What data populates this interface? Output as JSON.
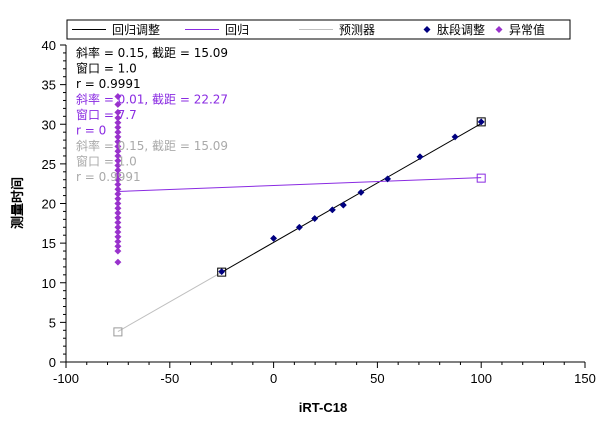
{
  "chart_data": {
    "type": "scatter",
    "xlabel": "iRT-C18",
    "ylabel": "测量时间",
    "xlim": [
      -100,
      150
    ],
    "ylim": [
      0,
      40
    ],
    "x_ticks": [
      -100,
      -50,
      0,
      50,
      100,
      150
    ],
    "y_ticks": [
      0,
      5,
      10,
      15,
      20,
      25,
      30,
      35,
      40
    ],
    "grid": false,
    "legend_placement": "top",
    "legend": [
      {
        "label": "回归调整",
        "kind": "line",
        "color": "#000000"
      },
      {
        "label": "回归",
        "kind": "line",
        "color": "#8a2be2"
      },
      {
        "label": "预测器",
        "kind": "line",
        "color": "#bfbfbf"
      },
      {
        "label": "肽段调整",
        "kind": "marker",
        "color": "#000080"
      },
      {
        "label": "异常值",
        "kind": "marker",
        "color": "#9932cc"
      }
    ],
    "lines": [
      {
        "name": "回归调整",
        "color": "#000000",
        "x": [
          -25,
          100
        ],
        "y": [
          11.34,
          30.09
        ]
      },
      {
        "name": "回归",
        "color": "#8a2be2",
        "x": [
          -75,
          100
        ],
        "y": [
          21.52,
          23.27
        ]
      },
      {
        "name": "预测器",
        "color": "#bfbfbf",
        "x": [
          -75,
          -25
        ],
        "y": [
          3.84,
          11.34
        ]
      }
    ],
    "endpoint_markers": [
      {
        "color": "#000000",
        "x": -25,
        "y": 11.34
      },
      {
        "color": "#000000",
        "x": 100,
        "y": 30.3
      },
      {
        "color": "#8a2be2",
        "x": 100,
        "y": 23.2
      },
      {
        "color": "#9a9a9a",
        "x": -75,
        "y": 3.8
      }
    ],
    "series": [
      {
        "name": "肽段调整",
        "color": "#000080",
        "points": [
          [
            -25,
            11.4
          ],
          [
            0,
            15.6
          ],
          [
            12.4,
            17.0
          ],
          [
            19.8,
            18.1
          ],
          [
            28.3,
            19.2
          ],
          [
            33.6,
            19.8
          ],
          [
            42.1,
            21.4
          ],
          [
            54.9,
            23.1
          ],
          [
            70.5,
            25.9
          ],
          [
            87.4,
            28.4
          ],
          [
            100,
            30.3
          ]
        ]
      },
      {
        "name": "异常值",
        "color": "#9932cc",
        "points": [
          [
            -75,
            33.5
          ],
          [
            -75,
            32.5
          ],
          [
            -75,
            31.5
          ],
          [
            -75,
            30.8
          ],
          [
            -75,
            30.2
          ],
          [
            -75,
            29.6
          ],
          [
            -75,
            29.0
          ],
          [
            -75,
            28.4
          ],
          [
            -75,
            27.8
          ],
          [
            -75,
            27.2
          ],
          [
            -75,
            26.6
          ],
          [
            -75,
            26.0
          ],
          [
            -75,
            25.4
          ],
          [
            -75,
            24.8
          ],
          [
            -75,
            24.2
          ],
          [
            -75,
            23.6
          ],
          [
            -75,
            23.0
          ],
          [
            -75,
            22.4
          ],
          [
            -75,
            21.8
          ],
          [
            -75,
            21.2
          ],
          [
            -75,
            20.6
          ],
          [
            -75,
            20.0
          ],
          [
            -75,
            19.4
          ],
          [
            -75,
            18.8
          ],
          [
            -75,
            18.2
          ],
          [
            -75,
            17.6
          ],
          [
            -75,
            17.0
          ],
          [
            -75,
            16.4
          ],
          [
            -75,
            15.8
          ],
          [
            -75,
            15.2
          ],
          [
            -75,
            14.6
          ],
          [
            -75,
            14.0
          ],
          [
            -75,
            12.6
          ]
        ]
      }
    ],
    "annotations": [
      {
        "text": "斜率 = 0.15, 截距 = 15.09",
        "color": "#000000"
      },
      {
        "text": "窗口 = 1.0",
        "color": "#000000"
      },
      {
        "text": "r = 0.9991",
        "color": "#000000"
      },
      {
        "text": "斜率 = 0.01, 截距 = 22.27",
        "color": "#8a2be2"
      },
      {
        "text": "窗口 = 7.7",
        "color": "#8a2be2"
      },
      {
        "text": "r = 0",
        "color": "#8a2be2"
      },
      {
        "text": "斜率 = 0.15, 截距 = 15.09",
        "color": "#aaaaaa"
      },
      {
        "text": "窗口 = 1.0",
        "color": "#aaaaaa"
      },
      {
        "text": "r = 0.9991",
        "color": "#aaaaaa"
      }
    ]
  }
}
